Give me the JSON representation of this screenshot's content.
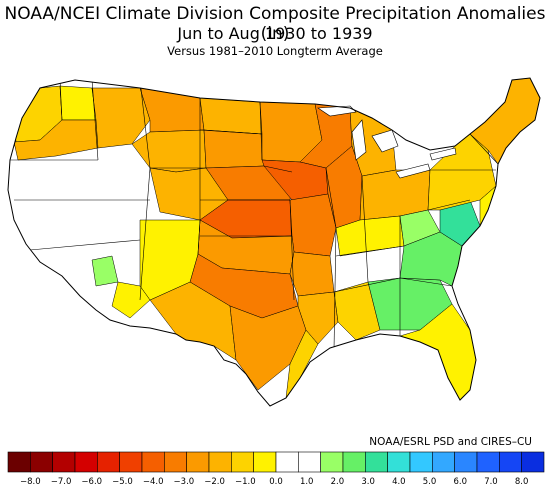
{
  "title": "NOAA/NCEI Climate Division Composite Precipitation Anomalies (in)",
  "subtitle": "Jun to Aug 1930 to 1939",
  "subtitle2": "Versus 1981–2010 Longterm Average",
  "credit": "NOAA/ESRL PSD and CIRES–CU",
  "legend": {
    "ticks": [
      "−8.0",
      "−7.0",
      "−6.0",
      "−5.0",
      "−4.0",
      "−3.0",
      "−2.0",
      "−1.0",
      "0.0",
      "1.0",
      "2.0",
      "3.0",
      "4.0",
      "5.0",
      "6.0",
      "7.0",
      "8.0"
    ],
    "colors": [
      "#6b0000",
      "#8b0000",
      "#b30000",
      "#d40000",
      "#e62200",
      "#f04000",
      "#f55f00",
      "#f87c00",
      "#fb9a00",
      "#fdb300",
      "#fdd300",
      "#fff200",
      "#ffffff",
      "#ffffff",
      "#99ff66",
      "#66f066",
      "#33e09a",
      "#33e0d8",
      "#33c8ff",
      "#33a8ff",
      "#2a86ff",
      "#1f62ff",
      "#1546f5",
      "#0a2ee0"
    ]
  },
  "map": {
    "colors": {
      "neutral": "#ffffff",
      "dry_light": "#fff200",
      "dry_yellow": "#fdd300",
      "dry_amber": "#fdb300",
      "dry_orange": "#fb9a00",
      "dry_deep": "#f87c00",
      "dry_red": "#f55f00",
      "wet_light": "#99ff66",
      "wet_green": "#66f066",
      "wet_mid": "#33e09a"
    }
  }
}
